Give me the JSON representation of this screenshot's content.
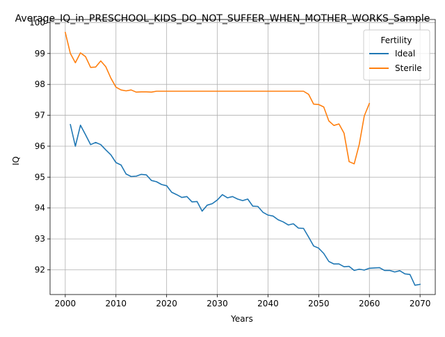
{
  "chart_data": {
    "type": "line",
    "title": "Average_IQ_in_PRESCHOOL_KIDS_DO_NOT_SUFFER_WHEN_MOTHER_WORKS_Sample",
    "xlabel": "Years",
    "ylabel": "IQ",
    "xlim": [
      1997,
      2073
    ],
    "ylim": [
      91.2,
      100.1
    ],
    "xticks": [
      2000,
      2010,
      2020,
      2030,
      2040,
      2050,
      2060,
      2070
    ],
    "yticks": [
      92,
      93,
      94,
      95,
      96,
      97,
      98,
      99,
      100
    ],
    "grid": true,
    "legend": {
      "title": "Fertility",
      "placement": "top-right"
    },
    "series": [
      {
        "name": "Ideal",
        "color": "#1f77b4",
        "x": [
          2001,
          2002,
          2003,
          2004,
          2005,
          2006,
          2007,
          2008,
          2009,
          2010,
          2011,
          2012,
          2013,
          2014,
          2015,
          2016,
          2017,
          2018,
          2019,
          2020,
          2021,
          2022,
          2023,
          2024,
          2025,
          2026,
          2027,
          2028,
          2029,
          2030,
          2031,
          2032,
          2033,
          2034,
          2035,
          2036,
          2037,
          2038,
          2039,
          2040,
          2041,
          2042,
          2043,
          2044,
          2045,
          2046,
          2047,
          2048,
          2049,
          2050,
          2051,
          2052,
          2053,
          2054,
          2055,
          2056,
          2057,
          2058,
          2059,
          2060,
          2061,
          2062,
          2063,
          2064,
          2065,
          2066,
          2067,
          2068,
          2069,
          2070
        ],
        "y": [
          96.7,
          96.0,
          96.68,
          96.37,
          96.05,
          96.12,
          96.05,
          95.88,
          95.72,
          95.47,
          95.39,
          95.1,
          95.02,
          95.03,
          95.09,
          95.07,
          94.89,
          94.85,
          94.76,
          94.72,
          94.51,
          94.43,
          94.34,
          94.37,
          94.2,
          94.21,
          93.9,
          94.09,
          94.14,
          94.26,
          94.43,
          94.33,
          94.37,
          94.29,
          94.24,
          94.29,
          94.06,
          94.05,
          93.86,
          93.77,
          93.74,
          93.62,
          93.55,
          93.45,
          93.49,
          93.35,
          93.34,
          93.06,
          92.77,
          92.7,
          92.53,
          92.27,
          92.19,
          92.19,
          92.1,
          92.11,
          91.98,
          92.02,
          91.99,
          92.05,
          92.06,
          92.07,
          91.98,
          91.98,
          91.93,
          91.97,
          91.87,
          91.85,
          91.5,
          91.53
        ]
      },
      {
        "name": "Sterile",
        "color": "#ff7f0e",
        "x": [
          2000,
          2001,
          2002,
          2003,
          2004,
          2005,
          2006,
          2007,
          2008,
          2009,
          2010,
          2011,
          2012,
          2013,
          2014,
          2015,
          2016,
          2017,
          2018,
          2019,
          2020,
          2021,
          2022,
          2023,
          2024,
          2025,
          2026,
          2027,
          2028,
          2029,
          2030,
          2031,
          2032,
          2033,
          2034,
          2035,
          2036,
          2037,
          2038,
          2039,
          2040,
          2041,
          2042,
          2043,
          2044,
          2045,
          2046,
          2047,
          2048,
          2049,
          2050,
          2051,
          2052,
          2053,
          2054,
          2055,
          2056,
          2057,
          2058,
          2059,
          2060
        ],
        "y": [
          99.68,
          99.0,
          98.7,
          99.02,
          98.9,
          98.55,
          98.56,
          98.76,
          98.57,
          98.2,
          97.91,
          97.82,
          97.79,
          97.82,
          97.75,
          97.76,
          97.76,
          97.75,
          97.78,
          97.78,
          97.78,
          97.78,
          97.78,
          97.78,
          97.78,
          97.78,
          97.78,
          97.78,
          97.78,
          97.78,
          97.78,
          97.78,
          97.78,
          97.78,
          97.78,
          97.78,
          97.78,
          97.78,
          97.78,
          97.78,
          97.78,
          97.78,
          97.78,
          97.78,
          97.78,
          97.78,
          97.78,
          97.78,
          97.68,
          97.36,
          97.35,
          97.27,
          96.82,
          96.67,
          96.72,
          96.42,
          95.5,
          95.43,
          96.06,
          96.98,
          97.38
        ]
      }
    ]
  }
}
